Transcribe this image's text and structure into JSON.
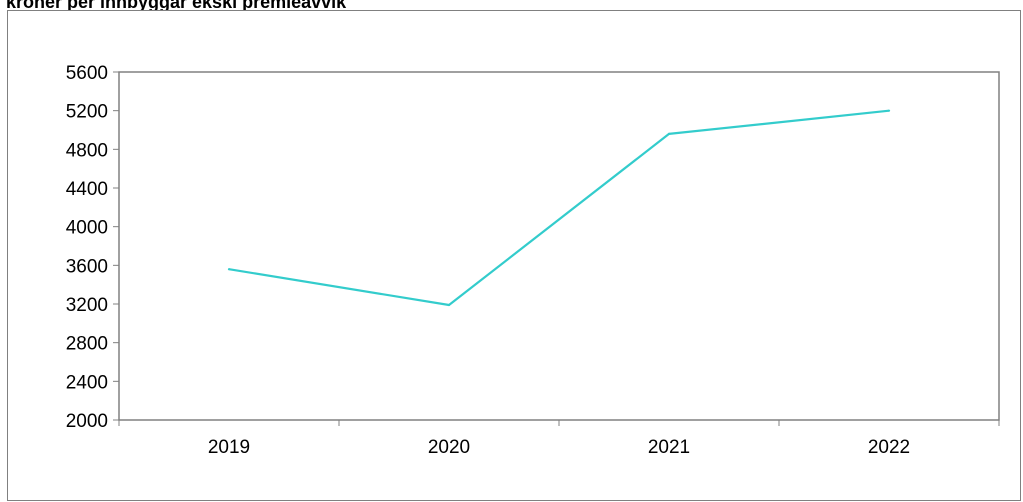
{
  "chart_data": {
    "type": "line",
    "title": "kroner per innbyggar ekskl premieavvik",
    "xlabel": "",
    "ylabel": "",
    "categories": [
      "2019",
      "2020",
      "2021",
      "2022"
    ],
    "series": [
      {
        "values": [
          3560,
          3190,
          4960,
          5200
        ],
        "color": "#33cccc"
      }
    ],
    "ylim": [
      2000,
      5600
    ],
    "yticks": [
      "2000",
      "2400",
      "2800",
      "3200",
      "3600",
      "4000",
      "4400",
      "4800",
      "5200",
      "5600"
    ],
    "grid": false,
    "legend": "none",
    "colors": {
      "axis": "#808080",
      "line": "#33cccc",
      "frame": "#808080"
    }
  }
}
